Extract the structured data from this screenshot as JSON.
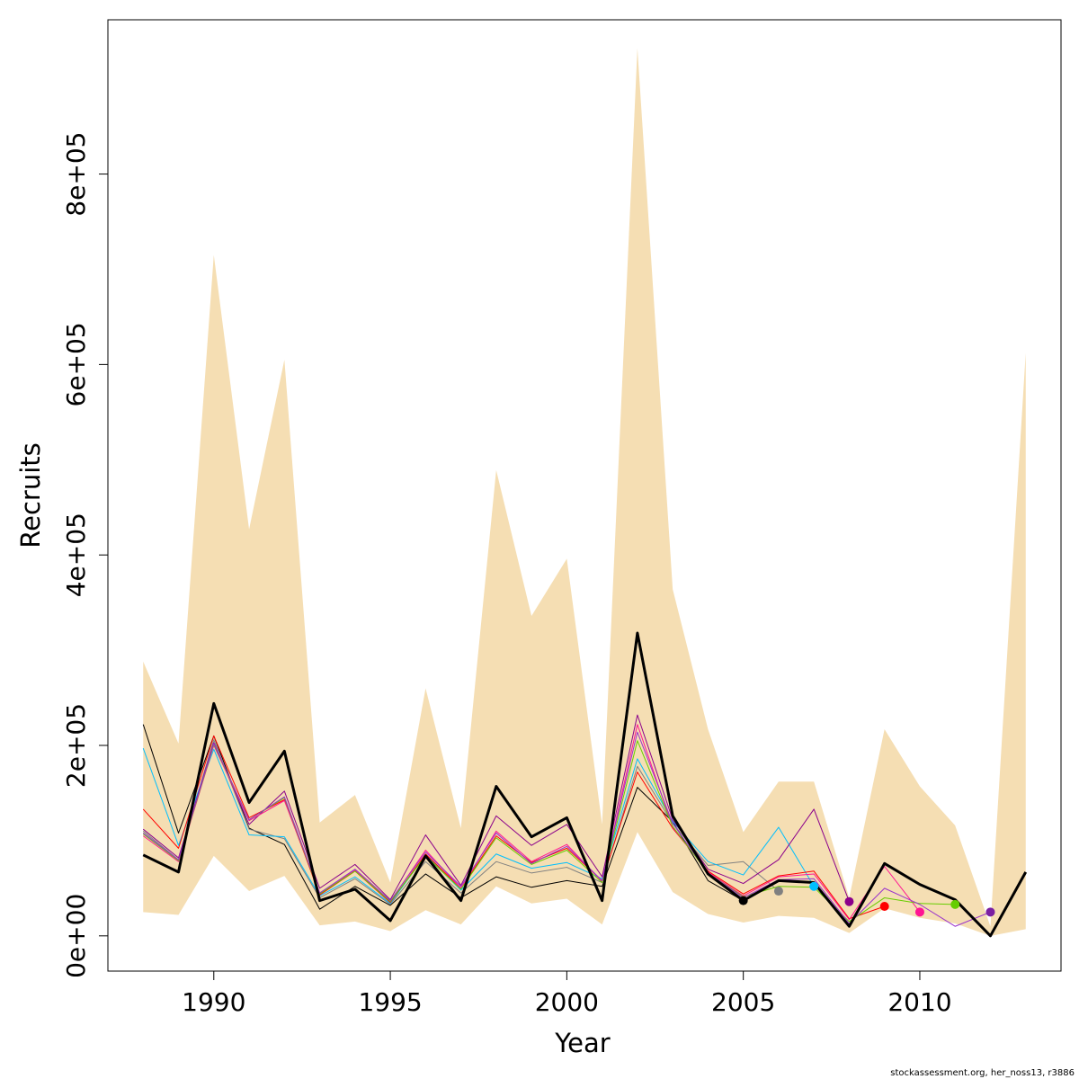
{
  "chart_data": {
    "type": "line",
    "title": "",
    "xlabel": "Year",
    "ylabel": "Recruits",
    "xlim": [
      1987,
      2014
    ],
    "ylim": [
      -37000,
      962000
    ],
    "x_ticks": [
      1990,
      1995,
      2000,
      2005,
      2010
    ],
    "x_tick_labels": [
      "1990",
      "1995",
      "2000",
      "2005",
      "2010"
    ],
    "y_ticks": [
      0,
      200000,
      400000,
      600000,
      800000
    ],
    "y_tick_labels": [
      "0e+00",
      "2e+05",
      "4e+05",
      "6e+05",
      "8e+05"
    ],
    "grid": false,
    "legend": "none",
    "credit": "stockassessment.org, her_noss13, r3886",
    "confidence_band": {
      "color": "#f5deb3",
      "x": [
        1988,
        1989,
        1990,
        1991,
        1992,
        1993,
        1994,
        1995,
        1996,
        1997,
        1998,
        1999,
        2000,
        2001,
        2002,
        2003,
        2004,
        2005,
        2006,
        2007,
        2008,
        2009,
        2010,
        2011,
        2012,
        2013
      ],
      "upper": [
        288000,
        202000,
        715000,
        427000,
        605000,
        119000,
        148000,
        56000,
        260000,
        113000,
        489000,
        336000,
        396000,
        117000,
        932000,
        364000,
        217000,
        109000,
        162000,
        162000,
        40000,
        217000,
        157000,
        116000,
        10000,
        612000
      ],
      "lower": [
        25000,
        22000,
        84000,
        47000,
        63000,
        11000,
        15000,
        5000,
        27000,
        12000,
        52000,
        34000,
        39000,
        12000,
        109000,
        46000,
        23000,
        14000,
        21000,
        19000,
        3000,
        29000,
        19000,
        13000,
        0,
        7000
      ]
    },
    "main_series": {
      "name": "",
      "color": "#000000",
      "x": [
        1988,
        1989,
        1990,
        1991,
        1992,
        1993,
        1994,
        1995,
        1996,
        1997,
        1998,
        1999,
        2000,
        2001,
        2002,
        2003,
        2004,
        2005,
        2006,
        2007,
        2008,
        2009,
        2010,
        2011,
        2012,
        2013
      ],
      "y": [
        85000,
        67000,
        244000,
        140000,
        194000,
        37000,
        49000,
        16000,
        84000,
        37000,
        157000,
        104000,
        124000,
        37000,
        318000,
        126000,
        65000,
        37000,
        58000,
        56000,
        10000,
        76000,
        54000,
        38000,
        0,
        67000
      ]
    },
    "retro_series": [
      {
        "color": "#000000",
        "x": [
          1988,
          1989,
          1990,
          1991,
          1992,
          1993,
          1994,
          1995,
          1996,
          1997,
          1998,
          1999,
          2000,
          2001,
          2002,
          2003,
          2004,
          2005
        ],
        "y": [
          222000,
          108000,
          210000,
          113000,
          96000,
          28000,
          52000,
          32000,
          65000,
          40000,
          62000,
          51000,
          58000,
          52000,
          156000,
          120000,
          58000,
          37000
        ]
      },
      {
        "color": "#808080",
        "x": [
          1988,
          1989,
          1990,
          1991,
          1992,
          1993,
          1994,
          1995,
          1996,
          1997,
          1998,
          1999,
          2000,
          2001,
          2002,
          2003,
          2004,
          2005,
          2006
        ],
        "y": [
          110000,
          80000,
          206000,
          112000,
          102000,
          40000,
          60000,
          33000,
          78000,
          45000,
          78000,
          66000,
          72000,
          56000,
          178000,
          118000,
          74000,
          78000,
          47000
        ]
      },
      {
        "color": "#00bfff",
        "x": [
          1988,
          1989,
          1990,
          1991,
          1992,
          1993,
          1994,
          1995,
          1996,
          1997,
          1998,
          1999,
          2000,
          2001,
          2002,
          2003,
          2004,
          2005,
          2006,
          2007
        ],
        "y": [
          197000,
          95000,
          196000,
          106000,
          104000,
          42000,
          62000,
          34000,
          85000,
          48000,
          86000,
          71000,
          77000,
          60000,
          186000,
          120000,
          78000,
          64000,
          114000,
          52000
        ]
      },
      {
        "color": "#8b008b",
        "x": [
          1988,
          1989,
          1990,
          1991,
          1992,
          1993,
          1994,
          1995,
          1996,
          1997,
          1998,
          1999,
          2000,
          2001,
          2002,
          2003,
          2004,
          2005,
          2006,
          2007,
          2008
        ],
        "y": [
          112000,
          82000,
          203000,
          117000,
          152000,
          50000,
          75000,
          38000,
          106000,
          53000,
          126000,
          95000,
          117000,
          62000,
          232000,
          122000,
          70000,
          55000,
          80000,
          133000,
          36000
        ]
      },
      {
        "color": "#ff0000",
        "x": [
          1988,
          1989,
          1990,
          1991,
          1992,
          1993,
          1994,
          1995,
          1996,
          1997,
          1998,
          1999,
          2000,
          2001,
          2002,
          2003,
          2004,
          2005,
          2006,
          2007,
          2008,
          2009
        ],
        "y": [
          133000,
          92000,
          210000,
          124000,
          143000,
          43000,
          68000,
          35000,
          86000,
          50000,
          105000,
          77000,
          92000,
          58000,
          172000,
          113000,
          68000,
          44000,
          63000,
          68000,
          18000,
          31000
        ]
      },
      {
        "color": "#ff1493",
        "x": [
          1988,
          1989,
          1990,
          1991,
          1992,
          1993,
          1994,
          1995,
          1996,
          1997,
          1998,
          1999,
          2000,
          2001,
          2002,
          2003,
          2004,
          2005,
          2006,
          2007,
          2008,
          2009,
          2010
        ],
        "y": [
          105000,
          78000,
          200000,
          121000,
          142000,
          45000,
          69000,
          36000,
          90000,
          50000,
          110000,
          78000,
          96000,
          57000,
          222000,
          114000,
          67000,
          42000,
          62000,
          65000,
          17000,
          73000,
          25000
        ]
      },
      {
        "color": "#66cd00",
        "x": [
          1988,
          1989,
          1990,
          1991,
          1992,
          1993,
          1994,
          1995,
          1996,
          1997,
          1998,
          1999,
          2000,
          2001,
          2002,
          2003,
          2004,
          2005,
          2006,
          2007,
          2008,
          2009,
          2010,
          2011
        ],
        "y": [
          107000,
          79000,
          201000,
          122000,
          145000,
          44000,
          68000,
          36000,
          84000,
          49000,
          103000,
          75000,
          90000,
          56000,
          205000,
          115000,
          66000,
          41000,
          52000,
          51000,
          15000,
          40000,
          34000,
          33000
        ]
      },
      {
        "color": "#9932cc",
        "x": [
          1988,
          1989,
          1990,
          1991,
          1992,
          1993,
          1994,
          1995,
          1996,
          1997,
          1998,
          1999,
          2000,
          2001,
          2002,
          2003,
          2004,
          2005,
          2006,
          2007,
          2008,
          2009,
          2010,
          2011,
          2012
        ],
        "y": [
          108000,
          80000,
          202000,
          122000,
          146000,
          45000,
          70000,
          37000,
          88000,
          52000,
          108000,
          76000,
          94000,
          58000,
          214000,
          118000,
          66000,
          40000,
          59000,
          60000,
          13000,
          50000,
          33000,
          10000,
          25000
        ]
      }
    ],
    "terminal_points": [
      {
        "x": 2005,
        "y": 37000,
        "color": "#000000"
      },
      {
        "x": 2006,
        "y": 47000,
        "color": "#808080"
      },
      {
        "x": 2007,
        "y": 52000,
        "color": "#00bfff"
      },
      {
        "x": 2008,
        "y": 36000,
        "color": "#8b008b"
      },
      {
        "x": 2009,
        "y": 31000,
        "color": "#ff0000"
      },
      {
        "x": 2010,
        "y": 25000,
        "color": "#ff1493"
      },
      {
        "x": 2011,
        "y": 33000,
        "color": "#66cd00"
      },
      {
        "x": 2012,
        "y": 25000,
        "color": "#7b1fa2"
      }
    ]
  }
}
